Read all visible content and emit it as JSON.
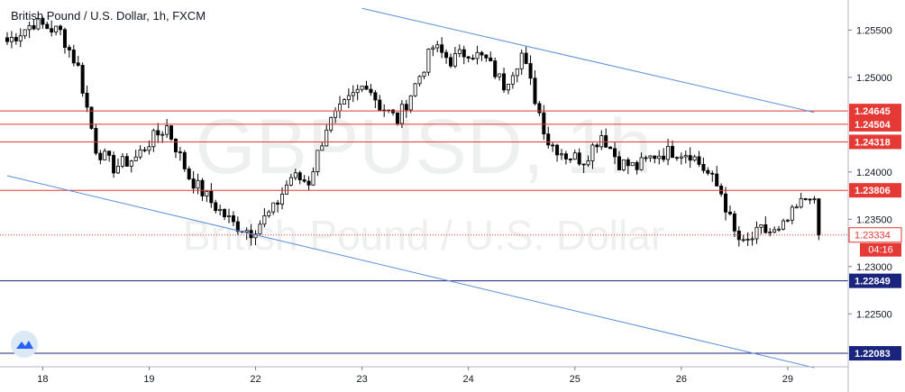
{
  "chart_data": {
    "type": "candlestick",
    "title": "British Pound / U.S. Dollar, 1h, FXCM",
    "watermark_symbol": "GBPUSD, 1h",
    "watermark_name": "British Pound / U.S. Dollar",
    "ylim": [
      1.2195,
      1.2578
    ],
    "y_ticks": [
      "1.25500",
      "1.25000",
      "1.24000",
      "1.23500",
      "1.23000",
      "1.22500"
    ],
    "x_ticks": [
      {
        "label": "18",
        "bar": 8
      },
      {
        "label": "19",
        "bar": 32
      },
      {
        "label": "22",
        "bar": 56
      },
      {
        "label": "23",
        "bar": 80
      },
      {
        "label": "24",
        "bar": 104
      },
      {
        "label": "25",
        "bar": 128
      },
      {
        "label": "26",
        "bar": 152
      },
      {
        "label": "29",
        "bar": 176
      }
    ],
    "bar_count": 184,
    "colors": {
      "up": "#26a69a",
      "down": "#ef5350",
      "candle": "#000000",
      "resistance": "#e53935",
      "support": "#1a237e",
      "channel": "#5b8fd6",
      "current": "#e53935"
    },
    "horizontal_levels": [
      {
        "value": 1.24645,
        "label": "1.24645",
        "kind": "resistance"
      },
      {
        "value": 1.24504,
        "label": "1.24504",
        "kind": "resistance"
      },
      {
        "value": 1.24318,
        "label": "1.24318",
        "kind": "resistance"
      },
      {
        "value": 1.23806,
        "label": "1.23806",
        "kind": "resistance"
      },
      {
        "value": 1.22849,
        "label": "1.22849",
        "kind": "support"
      },
      {
        "value": 1.22083,
        "label": "1.22083",
        "kind": "support"
      }
    ],
    "current_price": {
      "value": 1.23334,
      "label": "1.23334",
      "countdown": "04:16"
    },
    "channel_lines": [
      {
        "from": {
          "bar": 80,
          "price": 1.2573
        },
        "to": {
          "bar": 182,
          "price": 1.2463
        }
      },
      {
        "from": {
          "bar": 0,
          "price": 1.2396
        },
        "to": {
          "bar": 182,
          "price": 1.2193
        }
      }
    ],
    "price_path": [
      {
        "bar": 0,
        "price": 1.2538
      },
      {
        "bar": 6,
        "price": 1.2558
      },
      {
        "bar": 12,
        "price": 1.2548
      },
      {
        "bar": 16,
        "price": 1.251
      },
      {
        "bar": 20,
        "price": 1.2425
      },
      {
        "bar": 24,
        "price": 1.2405
      },
      {
        "bar": 29,
        "price": 1.2415
      },
      {
        "bar": 32,
        "price": 1.2432
      },
      {
        "bar": 36,
        "price": 1.2448
      },
      {
        "bar": 41,
        "price": 1.2395
      },
      {
        "bar": 46,
        "price": 1.2368
      },
      {
        "bar": 51,
        "price": 1.2345
      },
      {
        "bar": 55,
        "price": 1.2337
      },
      {
        "bar": 60,
        "price": 1.236
      },
      {
        "bar": 64,
        "price": 1.2395
      },
      {
        "bar": 68,
        "price": 1.239
      },
      {
        "bar": 72,
        "price": 1.2448
      },
      {
        "bar": 77,
        "price": 1.2475
      },
      {
        "bar": 81,
        "price": 1.2495
      },
      {
        "bar": 84,
        "price": 1.247
      },
      {
        "bar": 88,
        "price": 1.2455
      },
      {
        "bar": 92,
        "price": 1.2492
      },
      {
        "bar": 96,
        "price": 1.2532
      },
      {
        "bar": 100,
        "price": 1.2518
      },
      {
        "bar": 104,
        "price": 1.2528
      },
      {
        "bar": 108,
        "price": 1.2518
      },
      {
        "bar": 112,
        "price": 1.2492
      },
      {
        "bar": 116,
        "price": 1.2525
      },
      {
        "bar": 119,
        "price": 1.2478
      },
      {
        "bar": 122,
        "price": 1.2432
      },
      {
        "bar": 126,
        "price": 1.2418
      },
      {
        "bar": 130,
        "price": 1.2413
      },
      {
        "bar": 134,
        "price": 1.244
      },
      {
        "bar": 138,
        "price": 1.241
      },
      {
        "bar": 142,
        "price": 1.2405
      },
      {
        "bar": 146,
        "price": 1.2418
      },
      {
        "bar": 150,
        "price": 1.2422
      },
      {
        "bar": 154,
        "price": 1.242
      },
      {
        "bar": 158,
        "price": 1.2398
      },
      {
        "bar": 161,
        "price": 1.2378
      },
      {
        "bar": 164,
        "price": 1.2335
      },
      {
        "bar": 166,
        "price": 1.2322
      },
      {
        "bar": 170,
        "price": 1.2338
      },
      {
        "bar": 174,
        "price": 1.2335
      },
      {
        "bar": 177,
        "price": 1.2355
      },
      {
        "bar": 181,
        "price": 1.2378
      },
      {
        "bar": 182,
        "price": 1.2364
      },
      {
        "bar": 183,
        "price": 1.23334
      }
    ]
  }
}
